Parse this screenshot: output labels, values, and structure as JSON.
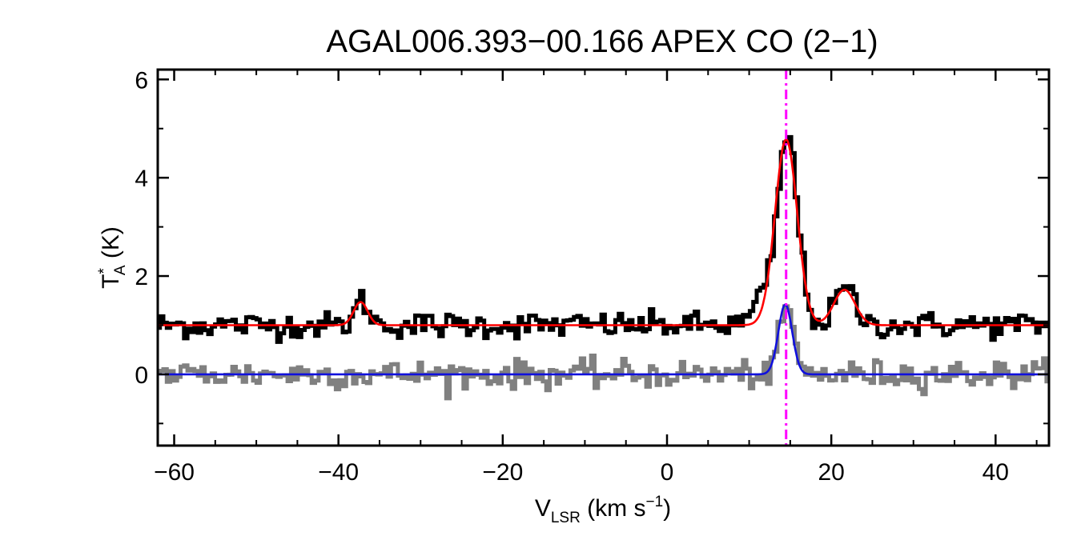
{
  "chart_data": {
    "type": "line",
    "title": "AGAL006.393−00.166  APEX CO (2−1)",
    "xlabel": {
      "main": "V",
      "sub": "LSR",
      "rest": " (km s",
      "sup": "−1",
      "end": ")"
    },
    "ylabel": {
      "main": "T",
      "sup": "*",
      "sub": "A",
      "rest": " (K)"
    },
    "xlim": [
      -62,
      46.5
    ],
    "ylim": [
      -1.45,
      6.2
    ],
    "xticks": [
      -60,
      -40,
      -20,
      0,
      20,
      40
    ],
    "xtick_labels": [
      "−60",
      "−40",
      "−20",
      "0",
      "20",
      "40"
    ],
    "yticks": [
      0,
      2,
      4,
      6
    ],
    "ytick_labels": [
      "0",
      "2",
      "4",
      "6"
    ],
    "marker_line": {
      "x": 14.5,
      "color": "#ff00ff",
      "style": "dash-dot"
    },
    "series": [
      {
        "role": "observed spectrum (offset +1 K)",
        "color": "#000000",
        "style": "histogram",
        "baseline": 1.0,
        "noise_rms": 0.13,
        "features": [
          {
            "center": -37.3,
            "peak": 0.5,
            "sigma": 0.8
          },
          {
            "center": 14.5,
            "peak": 3.8,
            "sigma": 1.25
          },
          {
            "center": 21.5,
            "peak": 0.75,
            "sigma": 1.2
          },
          {
            "center": 11.5,
            "peak": 0.5,
            "sigma": 1.2
          }
        ]
      },
      {
        "role": "residual / second spectrum",
        "color": "#808080",
        "style": "histogram",
        "baseline": 0.0,
        "noise_rms": 0.14,
        "features": [
          {
            "center": 14.4,
            "peak": 1.4,
            "sigma": 0.8
          }
        ]
      },
      {
        "role": "fit (offset +1 K)",
        "color": "#ff0000",
        "style": "smooth",
        "baseline": 1.0,
        "features": [
          {
            "center": -37.3,
            "peak": 0.47,
            "sigma": 0.85
          },
          {
            "center": 14.5,
            "peak": 3.78,
            "sigma": 1.35
          },
          {
            "center": 21.6,
            "peak": 0.72,
            "sigma": 1.3
          }
        ]
      },
      {
        "role": "fit",
        "color": "#1010dd",
        "style": "smooth",
        "baseline": 0.0,
        "features": [
          {
            "center": 14.4,
            "peak": 1.42,
            "sigma": 0.85
          }
        ]
      }
    ]
  }
}
